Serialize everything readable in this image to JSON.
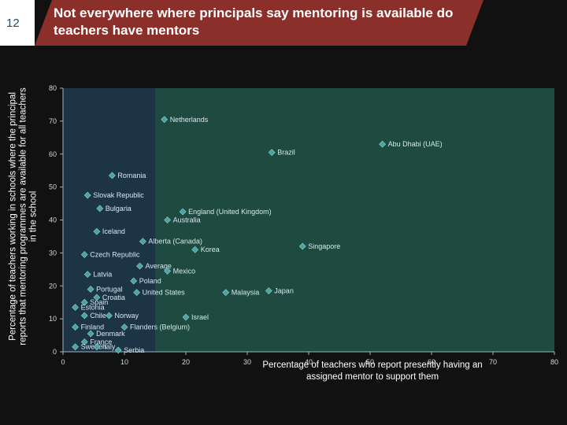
{
  "page_number": "12",
  "title": "Not everywhere where principals say mentoring is available do teachers have mentors",
  "colors": {
    "banner": "#8b2f2a",
    "point": "#4aa3a0",
    "highlight_region": "#1e4a3f",
    "plot_area": "#1d3346",
    "label": "#d6e8ef"
  },
  "chart_data": {
    "type": "scatter",
    "title": "Not everywhere where principals say mentoring is available do teachers have mentors",
    "xlabel": "Percentage of teachers who report presently having an assigned mentor to support them",
    "ylabel": "Percentage of teachers working in schools where the principal reports that mentoring programmes are available for all teachers in the school",
    "xlim": [
      0,
      80
    ],
    "ylim": [
      0,
      80
    ],
    "x_ticks": [
      0,
      10,
      20,
      30,
      40,
      50,
      60,
      70,
      80
    ],
    "y_ticks": [
      0,
      10,
      20,
      30,
      40,
      50,
      60,
      70,
      80
    ],
    "grid": false,
    "legend": "none",
    "highlight_region": {
      "x_from": 15,
      "x_to": 80,
      "y_from": 0,
      "y_to": 80
    },
    "points": [
      {
        "label": "Netherlands",
        "x": 16.5,
        "y": 70.5
      },
      {
        "label": "Abu Dhabi (UAE)",
        "x": 52,
        "y": 63
      },
      {
        "label": "Brazil",
        "x": 34,
        "y": 60.5
      },
      {
        "label": "Romania",
        "x": 8,
        "y": 53.5
      },
      {
        "label": "Slovak Republic",
        "x": 4,
        "y": 47.5
      },
      {
        "label": "Bulgaria",
        "x": 6,
        "y": 43.5
      },
      {
        "label": "England (United Kingdom)",
        "x": 19.5,
        "y": 42.5
      },
      {
        "label": "Australia",
        "x": 17,
        "y": 40
      },
      {
        "label": "Iceland",
        "x": 5.5,
        "y": 36.5
      },
      {
        "label": "Alberta (Canada)",
        "x": 13,
        "y": 33.5
      },
      {
        "label": "Korea",
        "x": 21.5,
        "y": 31
      },
      {
        "label": "Singapore",
        "x": 39,
        "y": 32
      },
      {
        "label": "Czech Republic",
        "x": 3.5,
        "y": 29.5
      },
      {
        "label": "Average",
        "x": 12.5,
        "y": 26
      },
      {
        "label": "Mexico",
        "x": 17,
        "y": 24.5
      },
      {
        "label": "Latvia",
        "x": 4,
        "y": 23.5
      },
      {
        "label": "Poland",
        "x": 11.5,
        "y": 21.5
      },
      {
        "label": "Malaysia",
        "x": 26.5,
        "y": 18
      },
      {
        "label": "Japan",
        "x": 33.5,
        "y": 18.5
      },
      {
        "label": "Portugal",
        "x": 4.5,
        "y": 19
      },
      {
        "label": "United States",
        "x": 12,
        "y": 18
      },
      {
        "label": "Croatia",
        "x": 5.5,
        "y": 16.5
      },
      {
        "label": "Spain",
        "x": 3.5,
        "y": 15
      },
      {
        "label": "Estonia",
        "x": 2,
        "y": 13.5
      },
      {
        "label": "Chile",
        "x": 3.5,
        "y": 11
      },
      {
        "label": "Norway",
        "x": 7.5,
        "y": 11
      },
      {
        "label": "Israel",
        "x": 20,
        "y": 10.5
      },
      {
        "label": "Finland",
        "x": 2,
        "y": 7.5
      },
      {
        "label": "Flanders (Belgium)",
        "x": 10,
        "y": 7.5
      },
      {
        "label": "Denmark",
        "x": 4.5,
        "y": 5.5
      },
      {
        "label": "France",
        "x": 3.5,
        "y": 3
      },
      {
        "label": "Sweden",
        "x": 2,
        "y": 1.5
      },
      {
        "label": "Italy",
        "x": 5.5,
        "y": 1.5
      },
      {
        "label": "Serbia",
        "x": 9,
        "y": 0.5
      }
    ]
  }
}
